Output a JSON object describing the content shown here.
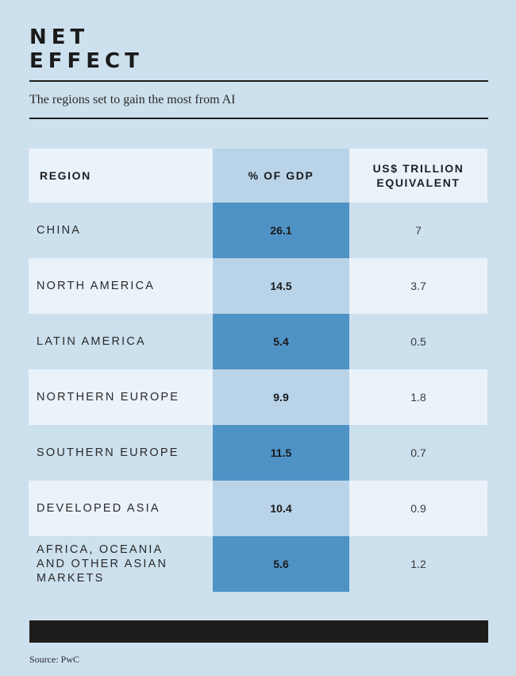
{
  "title_line1": "NET",
  "title_line2": "EFFECT",
  "subtitle": "The regions set to gain the most from AI",
  "source": "Source: PwC",
  "colors": {
    "background": "#cde0ee",
    "row_light": "#eaf2fa",
    "highlight_light": "#b9d4e9",
    "highlight_dark": "#4f92c6",
    "rule": "#1e1c1a"
  },
  "chart_data": {
    "type": "table",
    "title": "NET EFFECT",
    "subtitle": "The regions set to gain the most from AI",
    "columns": [
      "REGION",
      "% OF GDP",
      "US$ TRILLION\nEQUIVALENT"
    ],
    "rows": [
      {
        "region": "CHINA",
        "pct_gdp": "26.1",
        "usd_trillion": "7"
      },
      {
        "region": "NORTH AMERICA",
        "pct_gdp": "14.5",
        "usd_trillion": "3.7"
      },
      {
        "region": "LATIN AMERICA",
        "pct_gdp": "5.4",
        "usd_trillion": "0.5"
      },
      {
        "region": "NORTHERN EUROPE",
        "pct_gdp": "9.9",
        "usd_trillion": "1.8"
      },
      {
        "region": "SOUTHERN EUROPE",
        "pct_gdp": "11.5",
        "usd_trillion": "0.7"
      },
      {
        "region": "DEVELOPED ASIA",
        "pct_gdp": "10.4",
        "usd_trillion": "0.9"
      },
      {
        "region": "AFRICA, OCEANIA AND OTHER ASIAN MARKETS",
        "pct_gdp": "5.6",
        "usd_trillion": "1.2"
      }
    ],
    "source": "Source: PwC"
  }
}
